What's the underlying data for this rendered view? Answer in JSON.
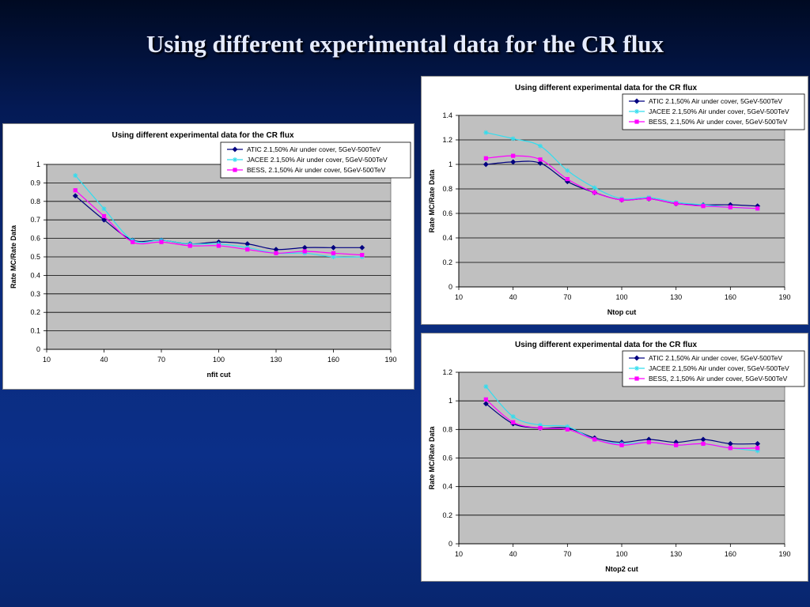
{
  "slide": {
    "title": "Using different experimental data for the CR flux"
  },
  "colors": {
    "atic": "#000080",
    "jacee": "#33ddee",
    "bess": "#ff00ff",
    "plot_bg": "#c0c0c0"
  },
  "chart_data": [
    {
      "type": "line",
      "title": "Using different experimental data for the CR flux",
      "xlabel": "nfit cut",
      "ylabel": "Rate MC/Rate Data",
      "xlim": [
        10,
        190
      ],
      "ylim": [
        0,
        1
      ],
      "xticks": [
        "10",
        "40",
        "70",
        "100",
        "130",
        "160",
        "190"
      ],
      "yticks": [
        "0",
        "0.1",
        "0.2",
        "0.3",
        "0.4",
        "0.5",
        "0.6",
        "0.7",
        "0.8",
        "0.9",
        "1"
      ],
      "grid": true,
      "legend_position": "top-right",
      "x": [
        25,
        40,
        55,
        70,
        85,
        100,
        115,
        130,
        145,
        160,
        175
      ],
      "series": [
        {
          "name": "ATIC 2.1,50% Air under cover, 5GeV-500TeV",
          "marker": "diamond",
          "color": "#000080",
          "values": [
            0.83,
            0.7,
            0.59,
            0.59,
            0.57,
            0.58,
            0.57,
            0.54,
            0.55,
            0.55,
            0.55
          ]
        },
        {
          "name": "JACEE 2.1,50% Air under cover, 5GeV-500TeV",
          "marker": "star",
          "color": "#33ddee",
          "values": [
            0.94,
            0.76,
            0.59,
            0.59,
            0.57,
            0.57,
            0.55,
            0.52,
            0.52,
            0.5,
            0.5
          ]
        },
        {
          "name": "BESS, 2.1,50% Air under cover, 5GeV-500TeV",
          "marker": "square",
          "color": "#ff00ff",
          "values": [
            0.86,
            0.72,
            0.58,
            0.58,
            0.56,
            0.56,
            0.54,
            0.52,
            0.53,
            0.52,
            0.51
          ]
        }
      ]
    },
    {
      "type": "line",
      "title": "Using different experimental data for the CR flux",
      "xlabel": "Ntop cut",
      "ylabel": "Rate MC/Rate Data",
      "xlim": [
        10,
        190
      ],
      "ylim": [
        0,
        1.4
      ],
      "xticks": [
        "10",
        "40",
        "70",
        "100",
        "130",
        "160",
        "190"
      ],
      "yticks": [
        "0",
        "0.2",
        "0.4",
        "0.6",
        "0.8",
        "1",
        "1.2",
        "1.4"
      ],
      "grid": true,
      "legend_position": "top-right",
      "x": [
        25,
        40,
        55,
        70,
        85,
        100,
        115,
        130,
        145,
        160,
        175
      ],
      "series": [
        {
          "name": "ATIC 2.1,50% Air under cover, 5GeV-500TeV",
          "marker": "diamond",
          "color": "#000080",
          "values": [
            1.0,
            1.02,
            1.01,
            0.86,
            0.77,
            0.71,
            0.72,
            0.68,
            0.67,
            0.67,
            0.66
          ]
        },
        {
          "name": "JACEE 2.1,50% Air under cover, 5GeV-500TeV",
          "marker": "star",
          "color": "#33ddee",
          "values": [
            1.26,
            1.21,
            1.15,
            0.95,
            0.81,
            0.72,
            0.73,
            0.69,
            0.67,
            0.65,
            0.64
          ]
        },
        {
          "name": "BESS, 2.1,50% Air under cover, 5GeV-500TeV",
          "marker": "square",
          "color": "#ff00ff",
          "values": [
            1.05,
            1.07,
            1.04,
            0.88,
            0.77,
            0.71,
            0.72,
            0.68,
            0.66,
            0.65,
            0.64
          ]
        }
      ]
    },
    {
      "type": "line",
      "title": "Using different experimental data for the CR flux",
      "xlabel": "Ntop2 cut",
      "ylabel": "Rate MC/Rate Data",
      "xlim": [
        10,
        190
      ],
      "ylim": [
        0,
        1.2
      ],
      "xticks": [
        "10",
        "40",
        "70",
        "100",
        "130",
        "160",
        "190"
      ],
      "yticks": [
        "0",
        "0.2",
        "0.4",
        "0.6",
        "0.8",
        "1",
        "1.2"
      ],
      "grid": true,
      "legend_position": "top-right",
      "x": [
        25,
        40,
        55,
        70,
        85,
        100,
        115,
        130,
        145,
        160,
        175
      ],
      "series": [
        {
          "name": "ATIC 2.1,50% Air under cover, 5GeV-500TeV",
          "marker": "diamond",
          "color": "#000080",
          "values": [
            0.98,
            0.84,
            0.81,
            0.81,
            0.74,
            0.71,
            0.73,
            0.71,
            0.73,
            0.7,
            0.7
          ]
        },
        {
          "name": "JACEE 2.1,50% Air under cover, 5GeV-500TeV",
          "marker": "star",
          "color": "#33ddee",
          "values": [
            1.1,
            0.89,
            0.83,
            0.82,
            0.73,
            0.7,
            0.71,
            0.69,
            0.7,
            0.67,
            0.65
          ]
        },
        {
          "name": "BESS, 2.1,50% Air under cover, 5GeV-500TeV",
          "marker": "square",
          "color": "#ff00ff",
          "values": [
            1.01,
            0.85,
            0.81,
            0.8,
            0.73,
            0.69,
            0.71,
            0.69,
            0.7,
            0.67,
            0.67
          ]
        }
      ]
    }
  ]
}
